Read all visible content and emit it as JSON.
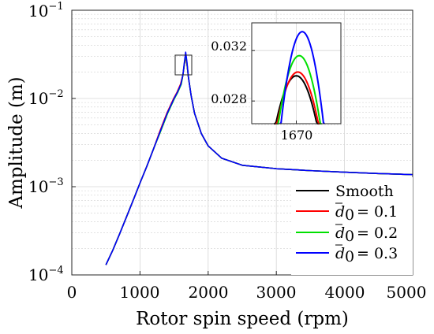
{
  "chart_data": {
    "type": "line",
    "title": "",
    "xlabel": "Rotor spin speed (rpm)",
    "ylabel": "Amplitude (m)",
    "xlim": [
      0,
      5000
    ],
    "ylim": [
      0.0001,
      0.1
    ],
    "yscale": "log",
    "grid": true,
    "x_ticks": [
      "0",
      "1000",
      "2000",
      "3000",
      "4000",
      "5000"
    ],
    "y_ticks": [
      {
        "base": "10",
        "exp": "−4"
      },
      {
        "base": "10",
        "exp": "−3"
      },
      {
        "base": "10",
        "exp": "−2"
      },
      {
        "base": "10",
        "exp": "−1"
      }
    ],
    "legend_position": "bottom-right",
    "series": [
      {
        "name": "Smooth",
        "color": "#000000",
        "peak": 0.03
      },
      {
        "name": "d̄₀ = 0.1",
        "color": "#ff0000",
        "peak": 0.0303
      },
      {
        "name": "d̄₀ = 0.2",
        "color": "#00e000",
        "peak": 0.0316
      },
      {
        "name": "d̄₀ = 0.3",
        "color": "#0000ff",
        "peak": 0.0335
      }
    ],
    "x": [
      500,
      600,
      700,
      800,
      900,
      1000,
      1100,
      1200,
      1300,
      1400,
      1500,
      1550,
      1600,
      1630,
      1650,
      1670,
      1690,
      1710,
      1750,
      1800,
      1900,
      2000,
      2200,
      2500,
      3000,
      3500,
      4000,
      4500,
      5000
    ],
    "y_reference": [
      0.00013,
      0.00019,
      0.00029,
      0.00045,
      0.0007,
      0.0011,
      0.0017,
      0.0027,
      0.0043,
      0.0068,
      0.01,
      0.0118,
      0.0145,
      0.0185,
      0.024,
      0.03,
      0.024,
      0.0175,
      0.0108,
      0.0068,
      0.004,
      0.0029,
      0.0021,
      0.00175,
      0.0016,
      0.00152,
      0.00146,
      0.00141,
      0.00137
    ],
    "legend_labels": {
      "smooth": "Smooth",
      "d01": "= 0.1",
      "d02": "= 0.2",
      "d03": "= 0.3"
    },
    "inset": {
      "xlim": [
        1655,
        1685
      ],
      "ylim": [
        0.0262,
        0.0342
      ],
      "x_tick": "1670",
      "y_ticks": [
        "0.028",
        "0.032"
      ]
    }
  }
}
